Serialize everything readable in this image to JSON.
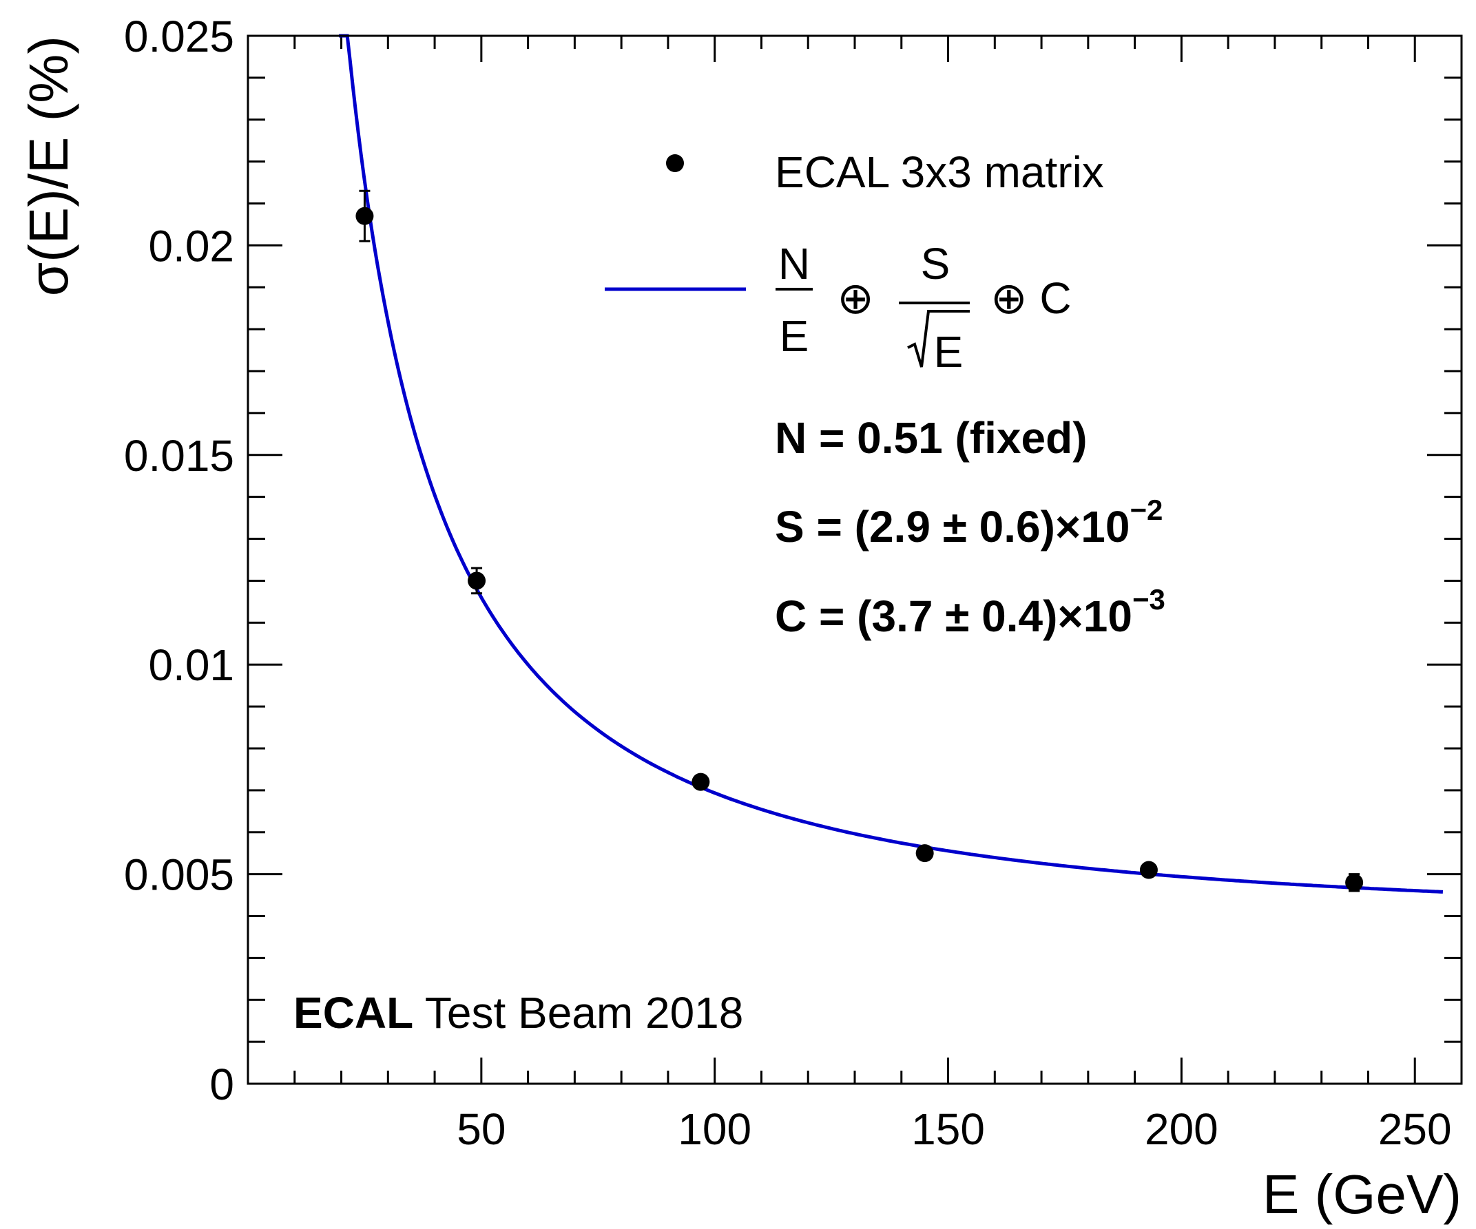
{
  "chart_data": {
    "type": "scatter",
    "title": "",
    "xlabel": "E (GeV)",
    "ylabel": "σ(E)/E (%)",
    "xlim": [
      0,
      260
    ],
    "ylim": [
      0,
      0.025
    ],
    "x_ticks": [
      50,
      100,
      150,
      200,
      250
    ],
    "x_tick_labels": [
      "50",
      "100",
      "150",
      "200",
      "250"
    ],
    "y_ticks": [
      0,
      0.005,
      0.01,
      0.015,
      0.02,
      0.025
    ],
    "y_tick_labels": [
      "0",
      "0.005",
      "0.01",
      "0.015",
      "0.02",
      "0.025"
    ],
    "series": [
      {
        "name": "ECAL 3x3 matrix",
        "kind": "points_with_errors",
        "color": "#000000",
        "x": [
          25,
          49,
          97,
          145,
          193,
          237
        ],
        "y": [
          0.0207,
          0.012,
          0.0072,
          0.0055,
          0.0051,
          0.0048
        ],
        "yerr": [
          0.0006,
          0.0003,
          0.0001,
          0.0001,
          0.0001,
          0.0002
        ]
      },
      {
        "name": "N/E ⊕ S/√E ⊕ C",
        "kind": "fit_curve",
        "color": "#0000cc",
        "N": 0.51,
        "S": 0.029,
        "C": 0.0037,
        "x_range": [
          19.5,
          256
        ]
      }
    ],
    "legend": {
      "position": "top-right",
      "points_label": "ECAL 3x3 matrix",
      "fit_numerator_1": "N",
      "fit_denominator_1": "E",
      "fit_oplus_1": "⊕",
      "fit_numerator_2": "S",
      "fit_denominator_2": "E",
      "fit_oplus_2": "⊕ C"
    },
    "fit_results": {
      "n_line": "N = 0.51 (fixed)",
      "s_line": "S = (2.9 ± 0.6)×10",
      "s_exp": "−2",
      "c_line": "C = (3.7 ± 0.4)×10",
      "c_exp": "−3"
    },
    "annotation": {
      "bold": "ECAL",
      "rest": " Test Beam 2018"
    }
  }
}
